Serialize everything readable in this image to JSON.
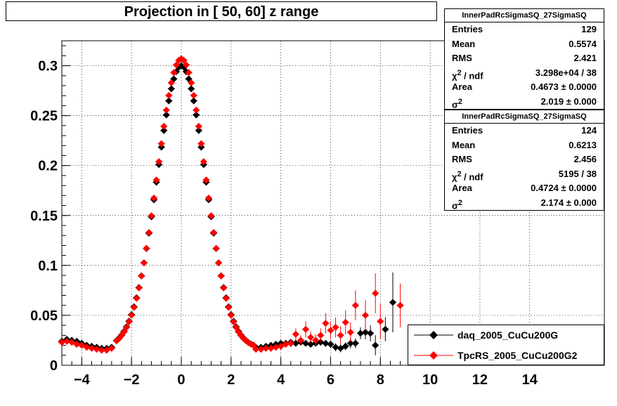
{
  "title": "Projection in [  50,  60] z range",
  "stats_boxes": [
    {
      "name": "InnerPadRcSigmaSQ_27SigmaSQ",
      "rows": [
        {
          "key": "Entries",
          "value": "129"
        },
        {
          "key": "Mean",
          "value": "0.5574"
        },
        {
          "key": "RMS",
          "value": "2.421"
        },
        {
          "key": "χ2 / ndf",
          "value": "3.298e+04 / 38"
        },
        {
          "key": "Area",
          "value": "0.4673 ± 0.0000"
        },
        {
          "key": "σ2",
          "value": "2.019 ± 0.000"
        }
      ]
    },
    {
      "name": "InnerPadRcSigmaSQ_27SigmaSQ",
      "rows": [
        {
          "key": "Entries",
          "value": "124"
        },
        {
          "key": "Mean",
          "value": "0.6213"
        },
        {
          "key": "RMS",
          "value": "2.456"
        },
        {
          "key": "χ2 / ndf",
          "value": "5195 / 38"
        },
        {
          "key": "Area",
          "value": "0.4724 ± 0.0000"
        },
        {
          "key": "σ2",
          "value": "2.174 ± 0.000"
        }
      ]
    }
  ],
  "legend": [
    {
      "label": "daq_2005_CuCu200G",
      "color": "#000000"
    },
    {
      "label": "TpcRS_2005_CuCu200G2",
      "color": "#ff0000"
    }
  ],
  "chart_data": {
    "type": "scatter",
    "xlim": [
      -4.8,
      17
    ],
    "ylim": [
      0,
      0.325
    ],
    "x_ticks": [
      -4,
      -2,
      0,
      2,
      4,
      6,
      8,
      10,
      12,
      14
    ],
    "x_tick_labels": [
      "−4",
      "−2",
      "0",
      "2",
      "4",
      "6",
      "8",
      "10",
      "12",
      "14"
    ],
    "y_ticks": [
      0,
      0.05,
      0.1,
      0.15,
      0.2,
      0.25,
      0.3
    ],
    "y_tick_labels": [
      "0",
      "0.05",
      "0.1",
      "0.15",
      "0.2",
      "0.25",
      "0.3"
    ],
    "grid": true,
    "series": [
      {
        "name": "daq_2005_CuCu200G",
        "color": "#000000",
        "core": {
          "mean": 0.0,
          "sigma": 0.97,
          "amp": 0.283,
          "x_from": -2.6,
          "x_to": 2.9,
          "step": 0.1
        },
        "points": [
          {
            "x": -4.8,
            "y": 0.024,
            "err": 0.002
          },
          {
            "x": -4.6,
            "y": 0.026,
            "err": 0.002
          },
          {
            "x": -4.4,
            "y": 0.025,
            "err": 0.002
          },
          {
            "x": -4.2,
            "y": 0.024,
            "err": 0.002
          },
          {
            "x": -4.0,
            "y": 0.022,
            "err": 0.002
          },
          {
            "x": -3.8,
            "y": 0.02,
            "err": 0.002
          },
          {
            "x": -3.6,
            "y": 0.019,
            "err": 0.002
          },
          {
            "x": -3.4,
            "y": 0.018,
            "err": 0.002
          },
          {
            "x": -3.2,
            "y": 0.017,
            "err": 0.002
          },
          {
            "x": -3.0,
            "y": 0.017,
            "err": 0.002
          },
          {
            "x": -2.8,
            "y": 0.018,
            "err": 0.002
          },
          {
            "x": 3.0,
            "y": 0.018,
            "err": 0.002
          },
          {
            "x": 3.2,
            "y": 0.018,
            "err": 0.002
          },
          {
            "x": 3.4,
            "y": 0.019,
            "err": 0.002
          },
          {
            "x": 3.6,
            "y": 0.02,
            "err": 0.002
          },
          {
            "x": 3.8,
            "y": 0.021,
            "err": 0.002
          },
          {
            "x": 4.0,
            "y": 0.022,
            "err": 0.002
          },
          {
            "x": 4.2,
            "y": 0.022,
            "err": 0.003
          },
          {
            "x": 4.4,
            "y": 0.023,
            "err": 0.003
          },
          {
            "x": 4.6,
            "y": 0.022,
            "err": 0.003
          },
          {
            "x": 4.8,
            "y": 0.023,
            "err": 0.003
          },
          {
            "x": 5.0,
            "y": 0.022,
            "err": 0.003
          },
          {
            "x": 5.2,
            "y": 0.021,
            "err": 0.003
          },
          {
            "x": 5.4,
            "y": 0.022,
            "err": 0.003
          },
          {
            "x": 5.6,
            "y": 0.023,
            "err": 0.003
          },
          {
            "x": 5.8,
            "y": 0.022,
            "err": 0.003
          },
          {
            "x": 6.0,
            "y": 0.021,
            "err": 0.004
          },
          {
            "x": 6.2,
            "y": 0.018,
            "err": 0.004
          },
          {
            "x": 6.4,
            "y": 0.017,
            "err": 0.004
          },
          {
            "x": 6.6,
            "y": 0.019,
            "err": 0.004
          },
          {
            "x": 6.8,
            "y": 0.022,
            "err": 0.005
          },
          {
            "x": 7.0,
            "y": 0.022,
            "err": 0.005
          },
          {
            "x": 7.2,
            "y": 0.032,
            "err": 0.006
          },
          {
            "x": 7.4,
            "y": 0.033,
            "err": 0.007
          },
          {
            "x": 7.6,
            "y": 0.032,
            "err": 0.008
          },
          {
            "x": 7.8,
            "y": 0.02,
            "err": 0.01
          },
          {
            "x": 8.2,
            "y": 0.036,
            "err": 0.012
          },
          {
            "x": 8.5,
            "y": 0.063,
            "err": 0.03
          }
        ]
      },
      {
        "name": "TpcRS_2005_CuCu200G2",
        "color": "#ff0000",
        "core": {
          "mean": 0.0,
          "sigma": 0.96,
          "amp": 0.29,
          "x_from": -2.6,
          "x_to": 2.9,
          "step": 0.1
        },
        "points": [
          {
            "x": -4.8,
            "y": 0.023,
            "err": 0.002
          },
          {
            "x": -4.6,
            "y": 0.024,
            "err": 0.002
          },
          {
            "x": -4.4,
            "y": 0.023,
            "err": 0.002
          },
          {
            "x": -4.2,
            "y": 0.021,
            "err": 0.002
          },
          {
            "x": -4.0,
            "y": 0.02,
            "err": 0.002
          },
          {
            "x": -3.8,
            "y": 0.018,
            "err": 0.002
          },
          {
            "x": -3.6,
            "y": 0.017,
            "err": 0.002
          },
          {
            "x": -3.4,
            "y": 0.016,
            "err": 0.002
          },
          {
            "x": -3.2,
            "y": 0.015,
            "err": 0.002
          },
          {
            "x": -3.0,
            "y": 0.015,
            "err": 0.002
          },
          {
            "x": -2.8,
            "y": 0.017,
            "err": 0.002
          },
          {
            "x": 3.0,
            "y": 0.016,
            "err": 0.002
          },
          {
            "x": 3.2,
            "y": 0.016,
            "err": 0.002
          },
          {
            "x": 3.4,
            "y": 0.017,
            "err": 0.002
          },
          {
            "x": 3.6,
            "y": 0.017,
            "err": 0.002
          },
          {
            "x": 3.8,
            "y": 0.018,
            "err": 0.002
          },
          {
            "x": 4.0,
            "y": 0.019,
            "err": 0.003
          },
          {
            "x": 4.2,
            "y": 0.021,
            "err": 0.003
          },
          {
            "x": 4.4,
            "y": 0.022,
            "err": 0.004
          },
          {
            "x": 4.6,
            "y": 0.031,
            "err": 0.006
          },
          {
            "x": 4.8,
            "y": 0.025,
            "err": 0.005
          },
          {
            "x": 5.0,
            "y": 0.036,
            "err": 0.008
          },
          {
            "x": 5.2,
            "y": 0.028,
            "err": 0.006
          },
          {
            "x": 5.4,
            "y": 0.025,
            "err": 0.006
          },
          {
            "x": 5.6,
            "y": 0.03,
            "err": 0.007
          },
          {
            "x": 5.8,
            "y": 0.042,
            "err": 0.01
          },
          {
            "x": 6.0,
            "y": 0.035,
            "err": 0.009
          },
          {
            "x": 6.2,
            "y": 0.038,
            "err": 0.01
          },
          {
            "x": 6.4,
            "y": 0.03,
            "err": 0.009
          },
          {
            "x": 6.6,
            "y": 0.043,
            "err": 0.012
          },
          {
            "x": 6.8,
            "y": 0.033,
            "err": 0.01
          },
          {
            "x": 7.0,
            "y": 0.06,
            "err": 0.015
          },
          {
            "x": 7.4,
            "y": 0.05,
            "err": 0.015
          },
          {
            "x": 7.8,
            "y": 0.072,
            "err": 0.02
          },
          {
            "x": 8.0,
            "y": 0.044,
            "err": 0.018
          },
          {
            "x": 8.8,
            "y": 0.06,
            "err": 0.022
          }
        ]
      }
    ]
  }
}
